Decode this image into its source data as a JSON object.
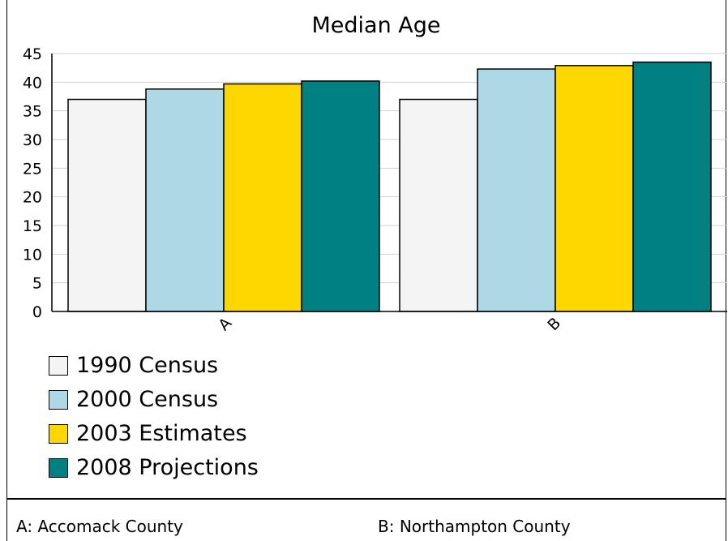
{
  "chart_data": {
    "type": "bar",
    "title": "Median Age",
    "categories": [
      "A",
      "B"
    ],
    "series": [
      {
        "name": "1990 Census",
        "values": [
          37.0,
          37.0
        ],
        "color": "#f4f4f4"
      },
      {
        "name": "2000 Census",
        "values": [
          38.8,
          42.3
        ],
        "color": "#add8e6"
      },
      {
        "name": "2003 Estimates",
        "values": [
          39.7,
          42.9
        ],
        "color": "#ffd700"
      },
      {
        "name": "2008 Projections",
        "values": [
          40.2,
          43.5
        ],
        "color": "#008080"
      }
    ],
    "ylim": [
      0,
      45
    ],
    "yticks": [
      0,
      5,
      10,
      15,
      20,
      25,
      30,
      35,
      40,
      45
    ],
    "grid": true,
    "legend_position": "bottom-left"
  },
  "footnotes": {
    "a": "A: Accomack County",
    "b": "B: Northampton County"
  }
}
